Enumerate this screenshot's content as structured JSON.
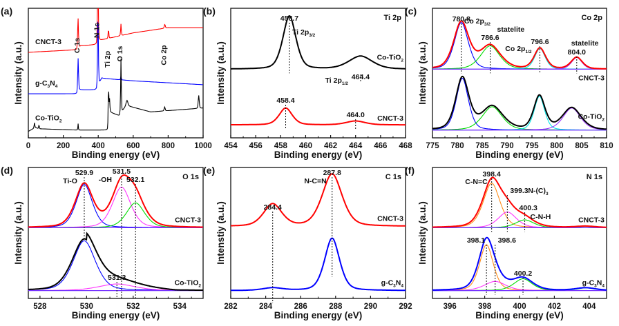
{
  "figure": {
    "panel_count": 6
  },
  "chart_data": [
    {
      "id": "a",
      "panel_label": "(a)",
      "type": "line",
      "title": "",
      "xlabel": "Binding energy (eV)",
      "ylabel": "Intensity (a.u.)",
      "xlim": [
        0,
        1000
      ],
      "xticks": [
        0,
        200,
        400,
        600,
        800,
        1000
      ],
      "xminor": 100,
      "y_ticks_shown": false,
      "series": [
        {
          "name": "CNCT-3",
          "color": "#ff0000",
          "offset": 0.66,
          "baseline": [
            [
              0,
              0.0
            ],
            [
              280,
              0.02
            ],
            [
              300,
              0.05
            ],
            [
              390,
              0.06
            ],
            [
              400,
              0.09
            ],
            [
              600,
              0.15
            ],
            [
              800,
              0.19
            ],
            [
              1000,
              0.19
            ]
          ],
          "peaks": [
            [
              284.5,
              0.24,
              2.5
            ],
            [
              398,
              0.5,
              2.5
            ],
            [
              458.7,
              0.07,
              2
            ],
            [
              530,
              0.09,
              2
            ],
            [
              780.8,
              0.03,
              3
            ]
          ]
        },
        {
          "name": "g-C3N4",
          "label_sub": [
            "g-C",
            "3",
            "N",
            "4"
          ],
          "color": "#0000ff",
          "offset": 0.34,
          "baseline": [
            [
              0,
              0.0
            ],
            [
              280,
              0.0
            ],
            [
              290,
              0.03
            ],
            [
              390,
              0.03
            ],
            [
              400,
              0.06
            ],
            [
              420,
              0.12
            ],
            [
              600,
              0.1
            ],
            [
              1000,
              0.07
            ]
          ],
          "peaks": [
            [
              284.8,
              0.26,
              2.5
            ],
            [
              398.5,
              0.56,
              2.5
            ],
            [
              530,
              0.03,
              2
            ]
          ]
        },
        {
          "name": "Co-TiO2",
          "label_sub": [
            "Co-TiO",
            "2"
          ],
          "color": "#000000",
          "offset": 0.05,
          "baseline": [
            [
              0,
              0.0
            ],
            [
              40,
              0.03
            ],
            [
              60,
              0.02
            ],
            [
              280,
              0.01
            ],
            [
              455,
              0.01
            ],
            [
              465,
              0.15
            ],
            [
              520,
              0.12
            ],
            [
              560,
              0.2
            ],
            [
              700,
              0.15
            ],
            [
              1000,
              0.18
            ]
          ],
          "peaks": [
            [
              35,
              0.04,
              2
            ],
            [
              61,
              0.03,
              2
            ],
            [
              284.8,
              0.05,
              1.5
            ],
            [
              458.7,
              0.28,
              2
            ],
            [
              464.4,
              0.1,
              2
            ],
            [
              530,
              0.42,
              2
            ],
            [
              565,
              0.04,
              5
            ],
            [
              780,
              0.03,
              3
            ],
            [
              975,
              0.1,
              3
            ]
          ]
        }
      ],
      "annotations": [
        {
          "text": "C 1s",
          "x": 284.5,
          "rotated": true
        },
        {
          "text": "N 1s",
          "x": 398,
          "rotated": true
        },
        {
          "text": "Ti 2p",
          "x": 458.7,
          "rotated": true
        },
        {
          "text": "O 1s",
          "x": 530,
          "rotated": true
        },
        {
          "text": "Co 2p",
          "x": 780.8,
          "rotated": true
        }
      ]
    },
    {
      "id": "b",
      "panel_label": "(b)",
      "type": "line",
      "title": "Ti 2p",
      "xlabel": "Binding energy (eV)",
      "ylabel": "Intensity (a.u.)",
      "xlim": [
        454,
        468
      ],
      "xticks": [
        454,
        456,
        458,
        460,
        462,
        464,
        466,
        468
      ],
      "xminor": 1,
      "y_ticks_shown": false,
      "series": [
        {
          "name": "Co-TiO2",
          "label_sub": [
            "Co-TiO",
            "2"
          ],
          "color": "#000000",
          "offset": 0.53,
          "peaks": [
            [
              458.7,
              0.41,
              0.55
            ],
            [
              464.4,
              0.1,
              1.0
            ]
          ]
        },
        {
          "name": "CNCT-3",
          "color": "#ff0000",
          "offset": 0.1,
          "peaks": [
            [
              458.4,
              0.13,
              0.55
            ],
            [
              464.0,
              0.03,
              0.8
            ]
          ]
        }
      ],
      "annotations": [
        {
          "text": "458.7",
          "x": 458.7,
          "series": 0
        },
        {
          "text": "Ti 2p",
          "sub": "3/2",
          "x": 458.7,
          "series": 0
        },
        {
          "text": "464.4",
          "x": 464.4,
          "series": 0
        },
        {
          "text": "Ti 2p",
          "sub": "1/2",
          "x": 464.4,
          "series": 0
        },
        {
          "text": "458.4",
          "x": 458.4,
          "series": 1
        },
        {
          "text": "464.0",
          "x": 464.0,
          "series": 1
        }
      ]
    },
    {
      "id": "c",
      "panel_label": "(c)",
      "type": "line",
      "title": "Co 2p",
      "xlabel": "Binding energy (eV)",
      "ylabel": "Intensity (a.u.)",
      "xlim": [
        775,
        810
      ],
      "xticks": [
        775,
        780,
        785,
        790,
        795,
        800,
        805,
        810
      ],
      "xminor": 2.5,
      "y_ticks_shown": false,
      "series": [
        {
          "name": "CNCT-3",
          "color": "#ff0000",
          "offset": 0.53,
          "peaks": [
            [
              780.8,
              0.36,
              1.6
            ],
            [
              786.6,
              0.18,
              2.2
            ],
            [
              796.6,
              0.16,
              1.2
            ],
            [
              804.0,
              0.09,
              1.2
            ]
          ],
          "components": [
            "#0000ff",
            "#00dd00",
            "#00e5e5",
            "#9933ff"
          ]
        },
        {
          "name": "Co-TiO2",
          "label_sub": [
            "Co-TiO",
            "2"
          ],
          "color": "#000000",
          "offset": 0.06,
          "peaks": [
            [
              781.0,
              0.4,
              1.4
            ],
            [
              787.0,
              0.18,
              2.3
            ],
            [
              796.5,
              0.26,
              1.2
            ],
            [
              803.0,
              0.17,
              2.0
            ]
          ],
          "components": [
            "#0000ff",
            "#00dd00",
            "#00e5e5",
            "#9933ff"
          ]
        }
      ],
      "annotations": [
        {
          "text": "780.8",
          "x": 780.8,
          "series": 0
        },
        {
          "text": "Co 2p",
          "sub": "3/2",
          "x": 780.8,
          "series": 0
        },
        {
          "text": "786.6",
          "x": 786.6,
          "series": 0
        },
        {
          "text": "statelite",
          "x": 786.6,
          "series": 0
        },
        {
          "text": "796.6",
          "x": 796.6,
          "series": 0
        },
        {
          "text": "Co 2p",
          "sub": "1/2",
          "x": 796.6,
          "series": 0
        },
        {
          "text": "804.0",
          "x": 804.0,
          "series": 0
        },
        {
          "text": "statelite",
          "x": 804.0,
          "series": 0
        }
      ]
    },
    {
      "id": "d",
      "panel_label": "(d)",
      "type": "line",
      "title": "O 1s",
      "xlabel": "Binding energy (eV)",
      "ylabel": "Intensity (a.u.)",
      "xlim": [
        527.5,
        535
      ],
      "xticks": [
        528,
        530,
        532,
        534
      ],
      "xminor": 0.5,
      "y_ticks_shown": false,
      "series": [
        {
          "name": "CNCT-3",
          "color": "#ff0000",
          "offset": 0.54,
          "peaks": [
            [
              529.9,
              0.33,
              0.4
            ],
            [
              531.5,
              0.31,
              0.45
            ],
            [
              532.1,
              0.19,
              0.45
            ]
          ],
          "components": [
            "#0000ff",
            "#ff33ff",
            "#00dd00"
          ]
        },
        {
          "name": "Co-TiO2",
          "label_sub": [
            "Co-TiO",
            "2"
          ],
          "color": "#000000",
          "offset": 0.06,
          "peaks": [
            [
              529.9,
              0.38,
              0.55
            ],
            [
              531.3,
              0.05,
              0.9
            ]
          ],
          "components": [
            "#0000ff",
            "#ff33ff"
          ],
          "tail": true
        }
      ],
      "annotations": [
        {
          "text": "529.9",
          "x": 529.9,
          "series": 0
        },
        {
          "text": "Ti-O",
          "x": 529.9,
          "series": 0
        },
        {
          "text": "531.5",
          "x": 531.5,
          "series": 0
        },
        {
          "text": "-OH",
          "x": 531.5,
          "series": 0
        },
        {
          "text": "532.1",
          "x": 532.1,
          "series": 0
        },
        {
          "text": "531.3",
          "x": 531.3,
          "series": 1
        }
      ]
    },
    {
      "id": "e",
      "panel_label": "(e)",
      "type": "line",
      "title": "C 1s",
      "xlabel": "Binding energy (eV)",
      "ylabel": "Intenstiy (a.u.)",
      "xlim": [
        282,
        292
      ],
      "xticks": [
        282,
        284,
        286,
        288,
        290,
        292
      ],
      "xminor": 1,
      "y_ticks_shown": false,
      "series": [
        {
          "name": "CNCT-3",
          "color": "#ff0000",
          "offset": 0.55,
          "peaks": [
            [
              284.4,
              0.17,
              0.55
            ],
            [
              287.8,
              0.4,
              0.6
            ]
          ]
        },
        {
          "name": "g-C3N4",
          "label_sub": [
            "g-C",
            "3",
            "N",
            "4"
          ],
          "color": "#0000ff",
          "offset": 0.06,
          "peaks": [
            [
              284.4,
              0.02,
              0.6
            ],
            [
              287.8,
              0.4,
              0.45
            ]
          ]
        }
      ],
      "annotations": [
        {
          "text": "284.4",
          "x": 284.4,
          "series": 0
        },
        {
          "text": "287.8",
          "x": 287.8,
          "series": 0
        },
        {
          "text": "N-C=N",
          "x": 287.8,
          "series": 0
        }
      ]
    },
    {
      "id": "f",
      "panel_label": "(f)",
      "type": "line",
      "title": "N 1s",
      "xlabel": "Binding energy (eV)",
      "ylabel": "Intensity (a.u.)",
      "xlim": [
        395,
        405
      ],
      "xticks": [
        396,
        398,
        400,
        402,
        404
      ],
      "xminor": 1,
      "y_ticks_shown": false,
      "series": [
        {
          "name": "CNCT-3",
          "color": "#ff0000",
          "offset": 0.54,
          "peaks": [
            [
              398.4,
              0.34,
              0.55
            ],
            [
              399.3,
              0.12,
              0.6
            ],
            [
              400.3,
              0.06,
              0.6
            ],
            [
              403.8,
              0.01,
              0.6
            ]
          ],
          "components": [
            "#ff8c1a",
            "#ff33ff",
            "#00dd00",
            "#00cccc"
          ]
        },
        {
          "name": "g-C3N4",
          "label_sub": [
            "g-C",
            "3",
            "N",
            "4"
          ],
          "color": "#0000ff",
          "offset": 0.06,
          "peaks": [
            [
              398.1,
              0.35,
              0.45
            ],
            [
              398.6,
              0.07,
              0.7
            ],
            [
              400.2,
              0.09,
              0.6
            ],
            [
              403.8,
              0.02,
              0.6
            ]
          ],
          "components": [
            "#ff8c1a",
            "#ff33ff",
            "#00dd00",
            "#00aaff"
          ]
        }
      ],
      "annotations": [
        {
          "text": "398.4",
          "x": 398.4,
          "series": 0
        },
        {
          "text": "C-N=C",
          "x": 398.4,
          "series": 0
        },
        {
          "text": "399.3",
          "x": 399.3,
          "series": 0
        },
        {
          "text": "N-(C)",
          "sub": "3",
          "x": 399.3,
          "series": 0
        },
        {
          "text": "400.3",
          "x": 400.3,
          "series": 0
        },
        {
          "text": "C-N-H",
          "x": 400.3,
          "series": 0
        },
        {
          "text": "398.1",
          "x": 398.1,
          "series": 1
        },
        {
          "text": "398.6",
          "x": 398.6,
          "series": 1
        },
        {
          "text": "400.2",
          "x": 400.2,
          "series": 1
        }
      ]
    }
  ]
}
